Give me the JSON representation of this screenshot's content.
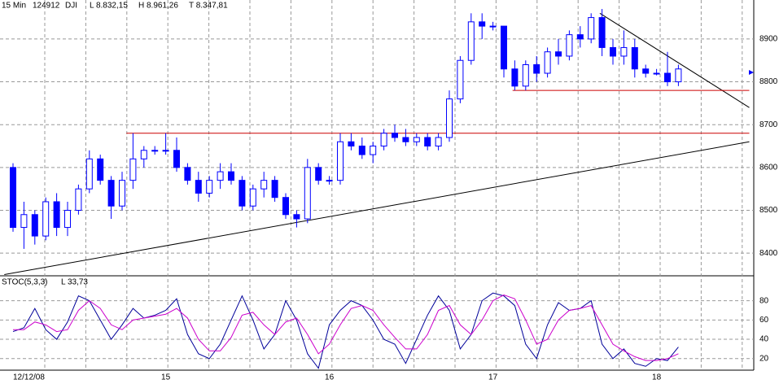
{
  "chart_data": [
    {
      "type": "candlestick",
      "interval": "15 Min",
      "code": "124912",
      "symbol": "DJI",
      "stats": [
        "L 8.832,15",
        "H 8.961,26",
        "T 8.347,81"
      ],
      "categories": [
        "12/12/08",
        null,
        null,
        null,
        null,
        null,
        null,
        null,
        null,
        null,
        null,
        null,
        null,
        null,
        "15",
        null,
        null,
        null,
        null,
        null,
        null,
        null,
        null,
        null,
        null,
        null,
        null,
        null,
        null,
        "16",
        null,
        null,
        null,
        null,
        null,
        null,
        null,
        null,
        null,
        null,
        null,
        null,
        null,
        null,
        "17",
        null,
        null,
        null,
        null,
        null,
        null,
        null,
        null,
        null,
        null,
        null,
        null,
        null,
        null,
        "18",
        null,
        null
      ],
      "open": [
        8600,
        8460,
        8490,
        8440,
        8520,
        8460,
        8500,
        8550,
        8620,
        8570,
        8510,
        8570,
        8620,
        8640,
        8640,
        8640,
        8600,
        8570,
        8540,
        8570,
        8590,
        8570,
        8510,
        8550,
        8570,
        8530,
        8490,
        8480,
        8600,
        8570,
        8570,
        8660,
        8650,
        8630,
        8650,
        8680,
        8670,
        8660,
        8670,
        8650,
        8670,
        8760,
        8850,
        8940,
        8930,
        8930,
        8830,
        8790,
        8840,
        8820,
        8870,
        8860,
        8910,
        8900,
        8950,
        8880,
        8860,
        8880,
        8830,
        8820,
        8820,
        8800
      ],
      "high": [
        8610,
        8520,
        8500,
        8530,
        8540,
        8520,
        8560,
        8640,
        8630,
        8580,
        8590,
        8680,
        8650,
        8650,
        8680,
        8670,
        8610,
        8590,
        8580,
        8610,
        8610,
        8580,
        8560,
        8590,
        8580,
        8540,
        8500,
        8620,
        8610,
        8580,
        8680,
        8680,
        8670,
        8660,
        8690,
        8700,
        8690,
        8680,
        8680,
        8680,
        8780,
        8860,
        8960,
        8960,
        8940,
        8930,
        8850,
        8850,
        8860,
        8880,
        8900,
        8920,
        8930,
        8960,
        8970,
        8900,
        8920,
        8900,
        8840,
        8830,
        8870,
        8840
      ],
      "low": [
        8450,
        8410,
        8420,
        8430,
        8440,
        8440,
        8490,
        8540,
        8560,
        8480,
        8500,
        8550,
        8600,
        8630,
        8630,
        8590,
        8560,
        8520,
        8530,
        8550,
        8560,
        8500,
        8500,
        8530,
        8520,
        8480,
        8460,
        8470,
        8560,
        8560,
        8560,
        8640,
        8620,
        8610,
        8640,
        8660,
        8650,
        8650,
        8640,
        8640,
        8660,
        8750,
        8840,
        8900,
        8920,
        8810,
        8780,
        8780,
        8800,
        8810,
        8840,
        8850,
        8880,
        8890,
        8860,
        8840,
        8840,
        8810,
        8810,
        8815,
        8790,
        8790
      ],
      "close": [
        8460,
        8490,
        8440,
        8520,
        8460,
        8500,
        8550,
        8620,
        8570,
        8510,
        8570,
        8620,
        8640,
        8640,
        8640,
        8600,
        8570,
        8540,
        8570,
        8590,
        8570,
        8510,
        8550,
        8570,
        8530,
        8490,
        8480,
        8600,
        8570,
        8570,
        8660,
        8650,
        8630,
        8650,
        8680,
        8670,
        8660,
        8670,
        8650,
        8670,
        8760,
        8850,
        8940,
        8930,
        8930,
        8830,
        8790,
        8840,
        8820,
        8870,
        8860,
        8910,
        8900,
        8950,
        8880,
        8860,
        8880,
        8830,
        8820,
        8820,
        8800,
        8830
      ],
      "up_color": "#ffffff",
      "down_color": "#0000ff",
      "outline_color": "#0000ff",
      "ylim": [
        8349,
        8991
      ],
      "yticks": [
        8400,
        8500,
        8600,
        8700,
        8800,
        8900
      ],
      "grid": true,
      "last_price_marker": 8822,
      "annotations": [
        {
          "x": [
            -0.8,
            67.5
          ],
          "y": [
            8350,
            8660
          ],
          "color": "#000000"
        },
        {
          "x": [
            53.8,
            67.5
          ],
          "y": [
            8960,
            8740
          ],
          "color": "#000000"
        },
        {
          "x": [
            10.4,
            67.5
          ],
          "y": [
            8680,
            8680
          ],
          "color": "#cc0000"
        },
        {
          "x": [
            45.8,
            67.5
          ],
          "y": [
            8780,
            8780
          ],
          "color": "#cc0000"
        }
      ]
    },
    {
      "type": "line",
      "title": "STOC(5,3,3)",
      "subtitle": "L 33,73",
      "series": [
        {
          "color": "#000099",
          "values": [
            48,
            52,
            72,
            50,
            40,
            58,
            85,
            80,
            60,
            40,
            55,
            72,
            62,
            65,
            70,
            82,
            45,
            25,
            20,
            35,
            60,
            85,
            60,
            30,
            45,
            80,
            60,
            25,
            10,
            55,
            70,
            80,
            75,
            60,
            40,
            35,
            15,
            40,
            65,
            85,
            70,
            30,
            45,
            80,
            88,
            85,
            75,
            35,
            20,
            55,
            78,
            70,
            72,
            80,
            35,
            20,
            30,
            15,
            12,
            20,
            18,
            32
          ]
        },
        {
          "color": "#cc00cc",
          "values": [
            50,
            50,
            58,
            55,
            48,
            50,
            70,
            80,
            72,
            55,
            50,
            60,
            62,
            64,
            66,
            72,
            62,
            40,
            28,
            28,
            42,
            65,
            68,
            55,
            45,
            58,
            62,
            45,
            25,
            35,
            55,
            72,
            75,
            70,
            55,
            42,
            30,
            30,
            45,
            70,
            75,
            55,
            45,
            60,
            80,
            86,
            82,
            60,
            35,
            40,
            60,
            70,
            72,
            75,
            55,
            35,
            28,
            22,
            18,
            18,
            20,
            25
          ]
        }
      ],
      "ylim": [
        8,
        105
      ],
      "yticks": [
        20,
        40,
        60,
        80
      ],
      "grid": true
    }
  ]
}
